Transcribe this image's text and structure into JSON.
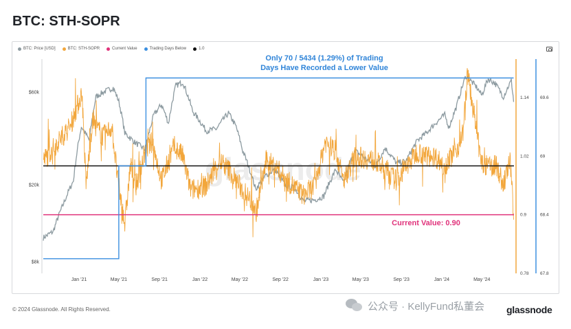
{
  "page": {
    "title": "BTC: STH-SOPR"
  },
  "legend": [
    {
      "label": "BTC: Price [USD]",
      "color": "#8c9aa0"
    },
    {
      "label": "BTC: STH-SOPR",
      "color": "#f2a63b"
    },
    {
      "label": "Current Value",
      "color": "#e0317a"
    },
    {
      "label": "Trading Days Below",
      "color": "#3b8fe0"
    },
    {
      "label": "1.0",
      "color": "#111111"
    }
  ],
  "footer": {
    "copyright": "© 2024 Glassnode. All Rights Reserved.",
    "wechat_text": "公众号 · KellyFund私董会",
    "brand": "glassnode"
  },
  "chart_data": {
    "type": "line",
    "title": "BTC: STH-SOPR",
    "x_ticks": [
      "Jan '21",
      "May '21",
      "Sep '21",
      "Jan '22",
      "May '22",
      "Sep '22",
      "Jan '23",
      "May '23",
      "Sep '23",
      "Jan '24",
      "May '24"
    ],
    "axes": {
      "price_left": {
        "scale": "log",
        "ticks": [
          "$8k",
          "$20k",
          "$60k"
        ],
        "range": [
          7000,
          90000
        ]
      },
      "sopr_right": {
        "ticks": [
          "0.78",
          "0.9",
          "1.02",
          "1.14"
        ],
        "range": [
          0.78,
          1.22
        ]
      },
      "trading_days_right": {
        "ticks": [
          "67.8",
          "68.4",
          "69",
          "69.6"
        ]
      }
    },
    "annotations": {
      "headline": [
        "Only 70 / 5434 (1.29%) of Trading",
        "Days Have Recorded a Lower Value"
      ],
      "current_value_label": "Current Value: 0.90"
    },
    "series": [
      {
        "name": "BTC: Price [USD]",
        "color": "#8c9aa0",
        "dates": [
          "2020-09-15",
          "2020-10-15",
          "2020-11-15",
          "2020-12-15",
          "2021-01-08",
          "2021-02-01",
          "2021-02-21",
          "2021-03-13",
          "2021-04-14",
          "2021-05-01",
          "2021-05-19",
          "2021-06-20",
          "2021-07-20",
          "2021-08-15",
          "2021-09-07",
          "2021-09-28",
          "2021-10-20",
          "2021-11-10",
          "2021-12-10",
          "2022-01-20",
          "2022-02-20",
          "2022-03-28",
          "2022-04-20",
          "2022-05-10",
          "2022-06-18",
          "2022-07-20",
          "2022-08-15",
          "2022-09-15",
          "2022-10-15",
          "2022-11-09",
          "2022-12-15",
          "2023-01-10",
          "2023-02-15",
          "2023-03-10",
          "2023-04-14",
          "2023-06-15",
          "2023-07-14",
          "2023-08-17",
          "2023-09-15",
          "2023-10-20",
          "2023-11-15",
          "2023-12-15",
          "2024-01-10",
          "2024-01-23",
          "2024-02-15",
          "2024-03-14",
          "2024-04-15",
          "2024-05-01",
          "2024-05-20",
          "2024-06-10",
          "2024-07-05",
          "2024-07-29",
          "2024-08-05"
        ],
        "values": [
          10700,
          11500,
          16000,
          21000,
          40000,
          34000,
          57000,
          60000,
          63500,
          54000,
          37000,
          33000,
          30500,
          46000,
          52000,
          41500,
          65000,
          68000,
          48000,
          38000,
          39000,
          47000,
          40000,
          30000,
          19000,
          22500,
          24000,
          20000,
          19200,
          16500,
          16800,
          17500,
          24000,
          20500,
          30000,
          25000,
          31000,
          26000,
          26500,
          34000,
          37000,
          42000,
          46000,
          39500,
          51000,
          73000,
          64000,
          58000,
          70500,
          67000,
          57000,
          69000,
          54000
        ]
      },
      {
        "name": "BTC: STH-SOPR",
        "color": "#f2a63b",
        "dates": [
          "2020-09-15",
          "2020-10-20",
          "2020-11-10",
          "2020-12-05",
          "2021-01-10",
          "2021-01-22",
          "2021-02-10",
          "2021-03-15",
          "2021-04-10",
          "2021-04-28",
          "2021-05-19",
          "2021-06-05",
          "2021-06-22",
          "2021-07-20",
          "2021-08-10",
          "2021-09-07",
          "2021-10-15",
          "2021-11-10",
          "2021-12-04",
          "2022-01-21",
          "2022-03-01",
          "2022-04-01",
          "2022-05-10",
          "2022-06-13",
          "2022-06-18",
          "2022-07-20",
          "2022-08-15",
          "2022-09-20",
          "2022-11-09",
          "2022-12-15",
          "2023-01-14",
          "2023-02-15",
          "2023-03-10",
          "2023-04-15",
          "2023-06-15",
          "2023-08-17",
          "2023-10-20",
          "2023-11-15",
          "2023-12-10",
          "2024-01-10",
          "2024-02-20",
          "2024-03-05",
          "2024-03-19",
          "2024-05-01",
          "2024-06-15",
          "2024-07-05",
          "2024-07-25",
          "2024-08-05"
        ],
        "values": [
          1.01,
          1.04,
          1.06,
          1.08,
          1.15,
          0.96,
          1.09,
          1.06,
          1.08,
          0.97,
          0.88,
          1.0,
          0.96,
          1.03,
          1.05,
          0.97,
          1.04,
          1.02,
          0.95,
          0.96,
          1.01,
          0.99,
          0.95,
          0.92,
          0.9,
          1.01,
          1.0,
          0.97,
          0.94,
          0.96,
          1.05,
          1.03,
          0.97,
          1.02,
          1.01,
          0.97,
          1.03,
          1.02,
          1.02,
          1.0,
          1.04,
          1.07,
          1.19,
          1.0,
          1.0,
          0.96,
          1.01,
          0.9
        ]
      },
      {
        "name": "Current Value",
        "color": "#e0317a",
        "constant": 0.9
      },
      {
        "name": "Trading Days Below",
        "color": "#3b8fe0",
        "dates": [
          "2020-09-15",
          "2021-05-01",
          "2021-05-01",
          "2021-07-22",
          "2021-07-22",
          "2024-08-05"
        ],
        "values": [
          67.95,
          67.95,
          68.9,
          68.9,
          69.8,
          69.8
        ]
      },
      {
        "name": "1.0",
        "color": "#111111",
        "constant": 1.0
      }
    ]
  }
}
